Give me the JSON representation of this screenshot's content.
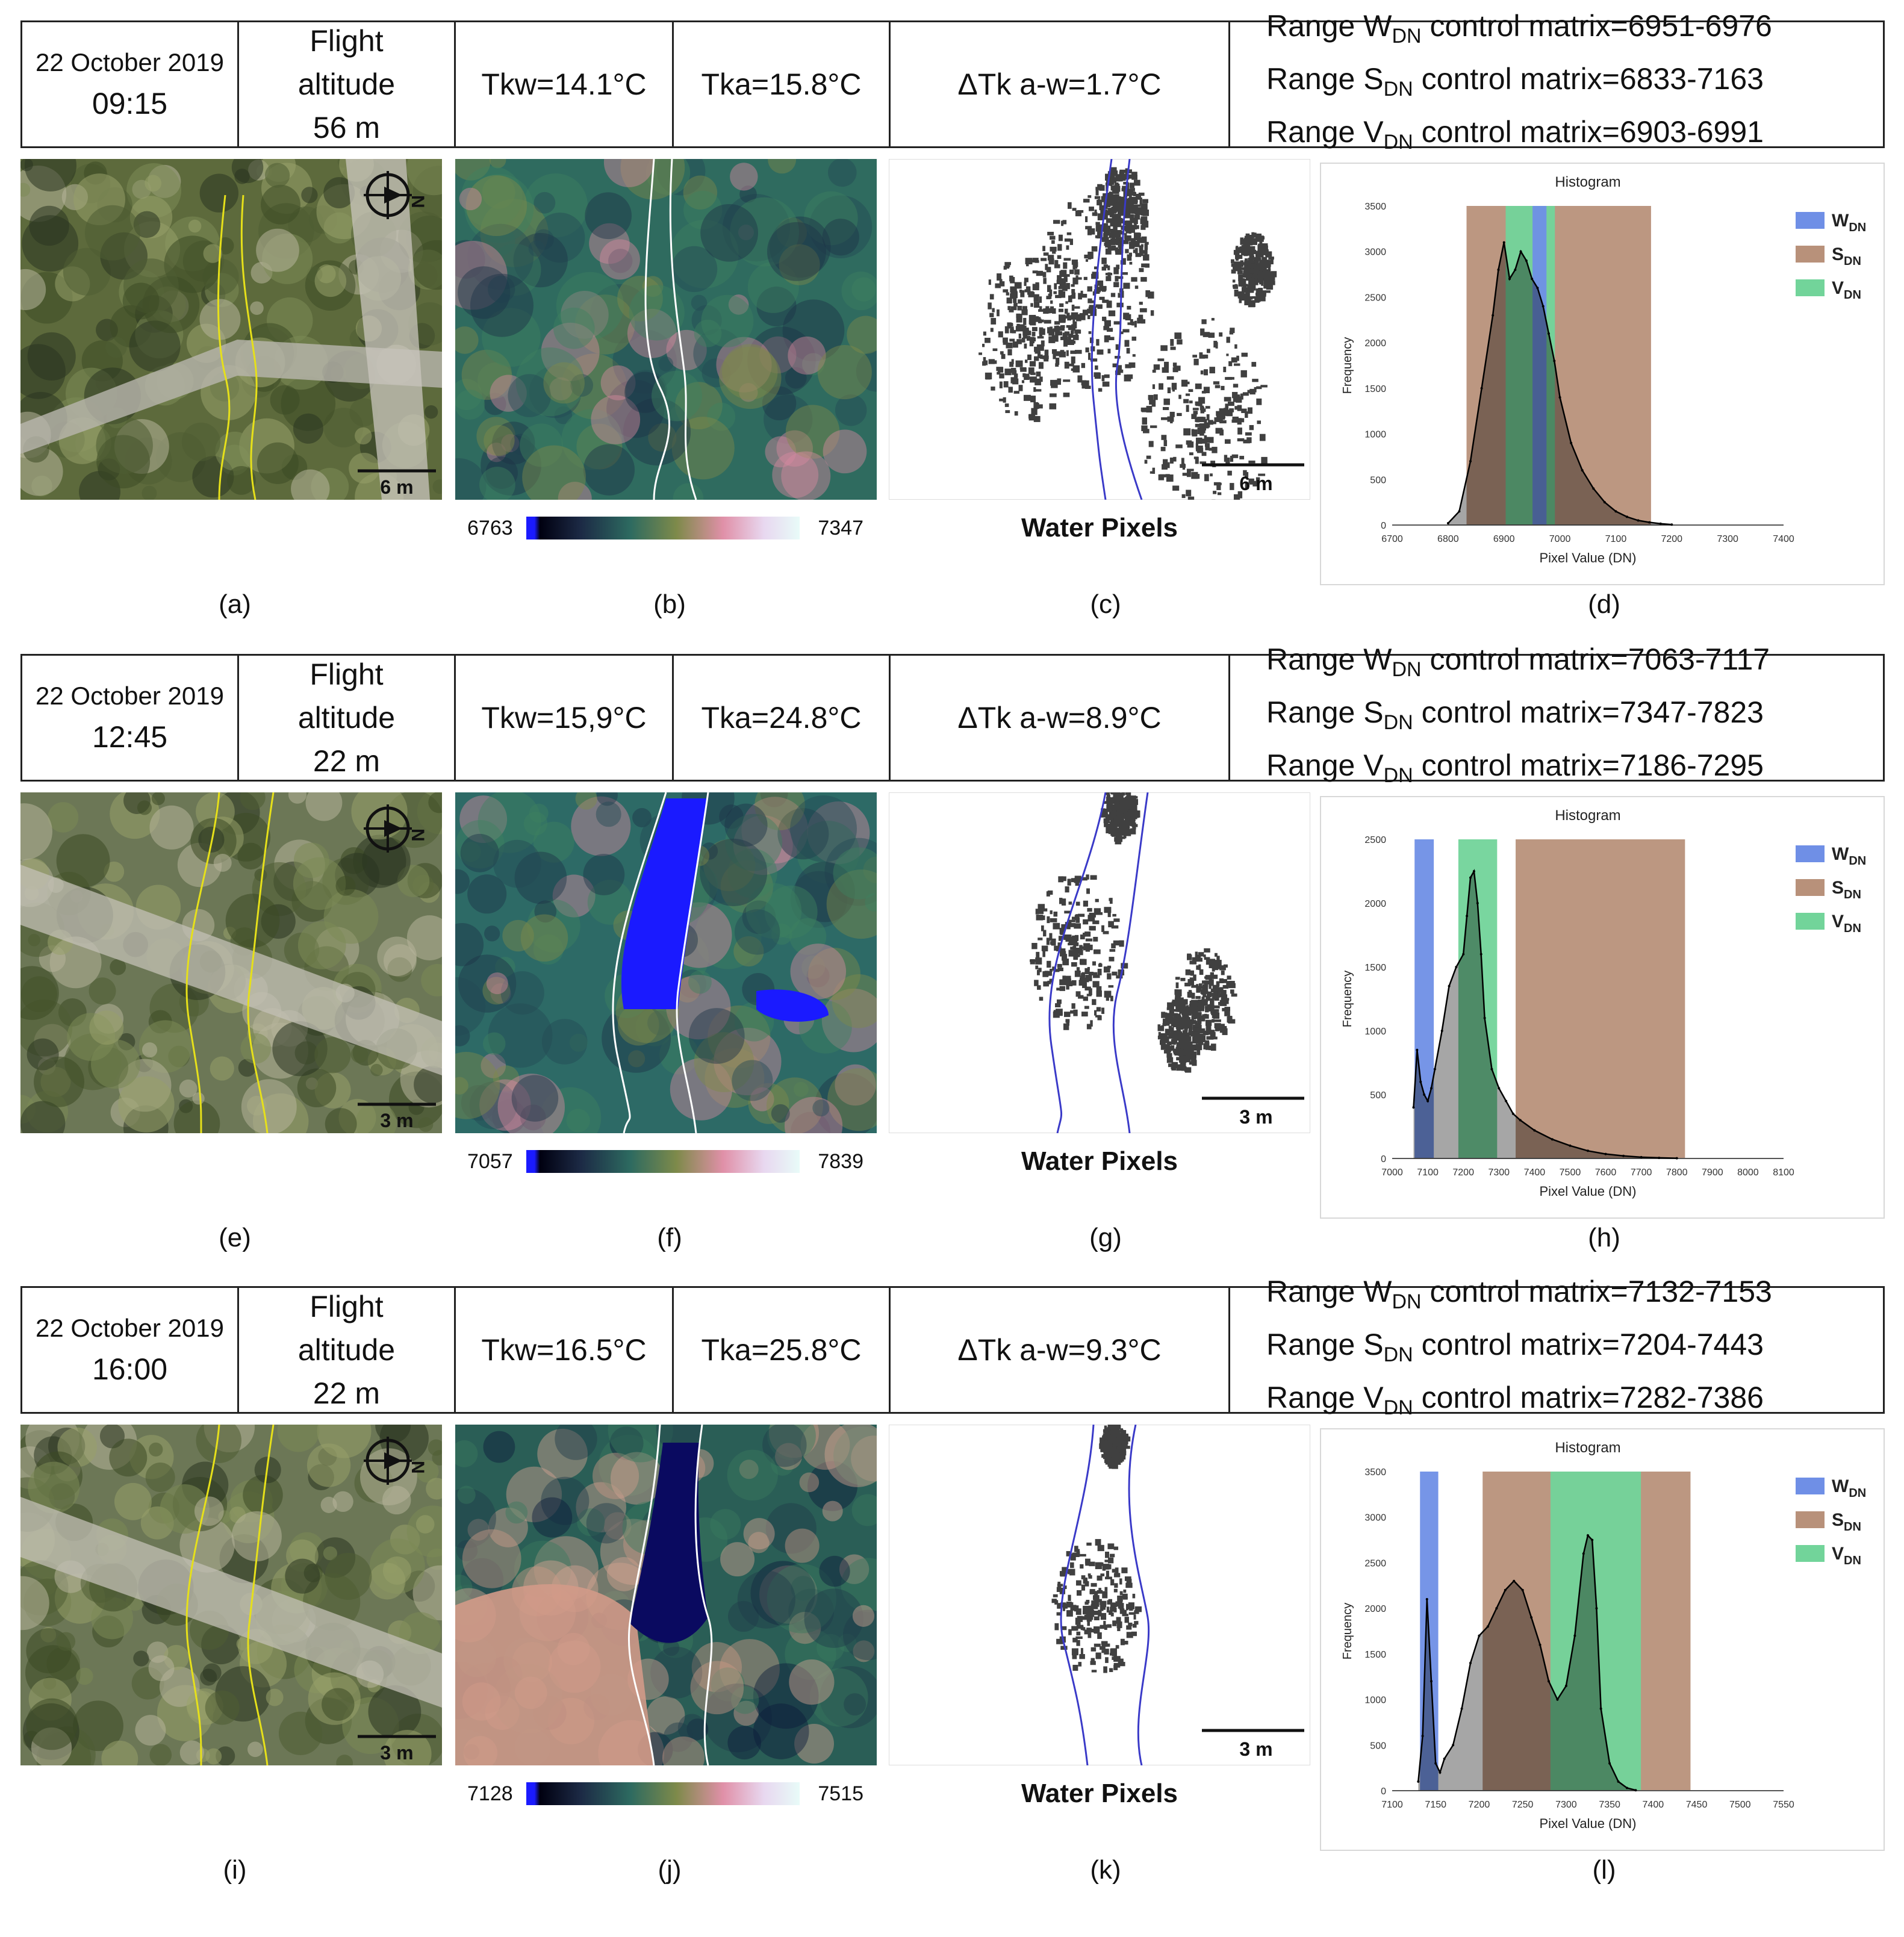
{
  "rows": [
    {
      "date": "22 October 2019",
      "time": "09:15",
      "altitude": [
        "Flight",
        "altitude",
        "56 m"
      ],
      "tkw": "Tkw=14.1°C",
      "tka": "Tka=15.8°C",
      "dtk": "ΔTk a-w=1.7°C",
      "ranges": [
        {
          "pre": "Range W",
          "sub": "DN",
          "post": " control matrix=6951-6976"
        },
        {
          "pre": "Range S",
          "sub": "DN",
          "post": " control matrix=6833-7163"
        },
        {
          "pre": "Range V",
          "sub": "DN",
          "post": " control matrix=6903-6991"
        }
      ],
      "scale_label": "6 m",
      "mask_scale_label": "6 m",
      "cbar_min": "6763",
      "cbar_max": "7347",
      "water_label": "Water Pixels",
      "labels": [
        "(a)",
        "(b)",
        "(c)",
        "(d)"
      ]
    },
    {
      "date": "22 October 2019",
      "time": "12:45",
      "altitude": [
        "Flight",
        "altitude",
        "22 m"
      ],
      "tkw": "Tkw=15,9°C",
      "tka": "Tka=24.8°C",
      "dtk": "ΔTk a-w=8.9°C",
      "ranges": [
        {
          "pre": "Range W",
          "sub": "DN",
          "post": " control matrix=7063-7117"
        },
        {
          "pre": "Range S",
          "sub": "DN",
          "post": " control matrix=7347-7823"
        },
        {
          "pre": "Range V",
          "sub": "DN",
          "post": " control matrix=7186-7295"
        }
      ],
      "scale_label": "3 m",
      "mask_scale_label": "3 m",
      "cbar_min": "7057",
      "cbar_max": "7839",
      "water_label": "Water Pixels",
      "labels": [
        "(e)",
        "(f)",
        "(g)",
        "(h)"
      ]
    },
    {
      "date": "22 October 2019",
      "time": "16:00",
      "altitude": [
        "Flight",
        "altitude",
        "22 m"
      ],
      "tkw": "Tkw=16.5°C",
      "tka": "Tka=25.8°C",
      "dtk": "ΔTk a-w=9.3°C",
      "ranges": [
        {
          "pre": "Range W",
          "sub": "DN",
          "post": " control matrix=7132-7153"
        },
        {
          "pre": "Range S",
          "sub": "DN",
          "post": " control matrix=7204-7443"
        },
        {
          "pre": "Range V",
          "sub": "DN",
          "post": " control matrix=7282-7386"
        }
      ],
      "scale_label": "3 m",
      "mask_scale_label": "3 m",
      "cbar_min": "7128",
      "cbar_max": "7515",
      "water_label": "Water Pixels",
      "labels": [
        "(i)",
        "(j)",
        "(k)",
        "(l)"
      ]
    }
  ],
  "colors": {
    "W": "#6f8fe6",
    "S": "#b8917a",
    "V": "#72d49a"
  },
  "chart_data": [
    {
      "type": "area",
      "title": "Histogram",
      "xlabel": "Pixel Value (DN)",
      "ylabel": "Frequency",
      "xlim": [
        6700,
        7400
      ],
      "ylim": [
        0,
        3500
      ],
      "xticks": [
        6700,
        6800,
        6900,
        7000,
        7100,
        7200,
        7300,
        7400
      ],
      "yticks": [
        0,
        500,
        1000,
        1500,
        2000,
        2500,
        3000,
        3500
      ],
      "legend": [
        {
          "name": "W",
          "sub": "DN"
        },
        {
          "name": "S",
          "sub": "DN"
        },
        {
          "name": "V",
          "sub": "DN"
        }
      ],
      "legend_position": "top-right",
      "bands": [
        {
          "key": "S",
          "from": 6833,
          "to": 7163
        },
        {
          "key": "V",
          "from": 6903,
          "to": 6991
        },
        {
          "key": "W",
          "from": 6951,
          "to": 6976
        }
      ],
      "x": [
        6800,
        6820,
        6840,
        6860,
        6880,
        6890,
        6900,
        6910,
        6920,
        6930,
        6940,
        6950,
        6960,
        6970,
        6980,
        6990,
        7000,
        7020,
        7040,
        7060,
        7080,
        7100,
        7120,
        7140,
        7160,
        7180,
        7200
      ],
      "y": [
        20,
        150,
        700,
        1500,
        2300,
        2800,
        3100,
        2700,
        2800,
        3000,
        2900,
        2700,
        2600,
        2400,
        2100,
        1800,
        1400,
        900,
        600,
        400,
        250,
        150,
        90,
        50,
        30,
        15,
        5
      ]
    },
    {
      "type": "area",
      "title": "Histogram",
      "xlabel": "Pixel Value (DN)",
      "ylabel": "Frequency",
      "xlim": [
        7000,
        8100
      ],
      "ylim": [
        0,
        2500
      ],
      "xticks": [
        7000,
        7100,
        7200,
        7300,
        7400,
        7500,
        7600,
        7700,
        7800,
        7900,
        8000,
        8100
      ],
      "yticks": [
        0,
        500,
        1000,
        1500,
        2000,
        2500
      ],
      "legend": [
        {
          "name": "W",
          "sub": "DN"
        },
        {
          "name": "S",
          "sub": "DN"
        },
        {
          "name": "V",
          "sub": "DN"
        }
      ],
      "legend_position": "top-right",
      "bands": [
        {
          "key": "W",
          "from": 7063,
          "to": 7117
        },
        {
          "key": "V",
          "from": 7186,
          "to": 7295
        },
        {
          "key": "S",
          "from": 7347,
          "to": 7823
        }
      ],
      "x": [
        7060,
        7070,
        7080,
        7090,
        7100,
        7110,
        7120,
        7140,
        7160,
        7180,
        7200,
        7210,
        7220,
        7230,
        7240,
        7250,
        7260,
        7280,
        7300,
        7320,
        7340,
        7360,
        7400,
        7450,
        7500,
        7550,
        7600,
        7650,
        7700,
        7750,
        7800
      ],
      "y": [
        400,
        850,
        600,
        500,
        450,
        550,
        700,
        1000,
        1350,
        1500,
        1600,
        1900,
        2200,
        2250,
        2000,
        1600,
        1100,
        700,
        550,
        450,
        350,
        300,
        220,
        150,
        100,
        60,
        35,
        20,
        10,
        5,
        2
      ]
    },
    {
      "type": "area",
      "title": "Histogram",
      "xlabel": "Pixel Value (DN)",
      "ylabel": "Frequency",
      "xlim": [
        7100,
        7550
      ],
      "ylim": [
        0,
        3500
      ],
      "xticks": [
        7100,
        7150,
        7200,
        7250,
        7300,
        7350,
        7400,
        7450,
        7500,
        7550
      ],
      "yticks": [
        0,
        500,
        1000,
        1500,
        2000,
        2500,
        3000,
        3500
      ],
      "legend": [
        {
          "name": "W",
          "sub": "DN"
        },
        {
          "name": "S",
          "sub": "DN"
        },
        {
          "name": "V",
          "sub": "DN"
        }
      ],
      "legend_position": "top-right",
      "bands": [
        {
          "key": "W",
          "from": 7132,
          "to": 7153
        },
        {
          "key": "S",
          "from": 7204,
          "to": 7443
        },
        {
          "key": "V",
          "from": 7282,
          "to": 7386
        }
      ],
      "x": [
        7130,
        7135,
        7140,
        7145,
        7150,
        7155,
        7160,
        7170,
        7180,
        7190,
        7200,
        7210,
        7220,
        7230,
        7240,
        7250,
        7260,
        7270,
        7280,
        7290,
        7300,
        7310,
        7320,
        7325,
        7330,
        7335,
        7340,
        7350,
        7360,
        7370,
        7380
      ],
      "y": [
        100,
        600,
        2100,
        1200,
        300,
        200,
        350,
        500,
        900,
        1400,
        1700,
        1800,
        2000,
        2200,
        2300,
        2200,
        1900,
        1600,
        1200,
        1000,
        1150,
        1700,
        2600,
        2800,
        2750,
        2000,
        900,
        300,
        100,
        30,
        5
      ]
    }
  ]
}
